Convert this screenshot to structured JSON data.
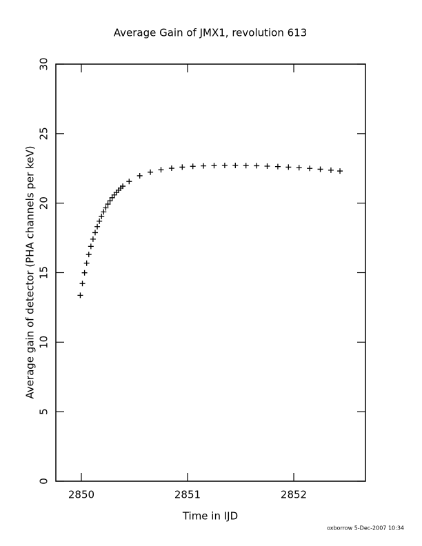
{
  "chart_data": {
    "type": "scatter",
    "title": "Average Gain of JMX1, revolution 613",
    "x_label": "Time in IJD",
    "y_label": "Average gain of detector (PHA channels per keV)",
    "footer": "oxborrow  5-Dec-2007 10:34",
    "marker": "+",
    "color": "#000000",
    "xlim": [
      2849.76,
      2852.675
    ],
    "xticks": [
      2850,
      2851,
      2852
    ],
    "ylim": [
      0,
      30
    ],
    "yticks": [
      0,
      5,
      10,
      15,
      20,
      25,
      30
    ],
    "x": [
      2849.99,
      2850.01,
      2850.03,
      2850.05,
      2850.07,
      2850.09,
      2850.11,
      2850.13,
      2850.15,
      2850.17,
      2850.19,
      2850.21,
      2850.23,
      2850.25,
      2850.27,
      2850.29,
      2850.31,
      2850.33,
      2850.35,
      2850.37,
      2850.39,
      2850.45,
      2850.55,
      2850.65,
      2850.75,
      2850.85,
      2850.95,
      2851.05,
      2851.15,
      2851.25,
      2851.35,
      2851.45,
      2851.55,
      2851.65,
      2851.75,
      2851.85,
      2851.95,
      2852.05,
      2852.15,
      2852.25,
      2852.35,
      2852.435
    ],
    "values": [
      13.37,
      14.22,
      14.99,
      15.68,
      16.31,
      16.89,
      17.41,
      17.88,
      18.31,
      18.7,
      19.05,
      19.37,
      19.66,
      19.93,
      20.17,
      20.39,
      20.59,
      20.77,
      20.93,
      21.08,
      21.22,
      21.56,
      21.97,
      22.23,
      22.4,
      22.51,
      22.59,
      22.65,
      22.68,
      22.7,
      22.71,
      22.71,
      22.7,
      22.69,
      22.66,
      22.63,
      22.59,
      22.55,
      22.5,
      22.44,
      22.37,
      22.31
    ]
  }
}
